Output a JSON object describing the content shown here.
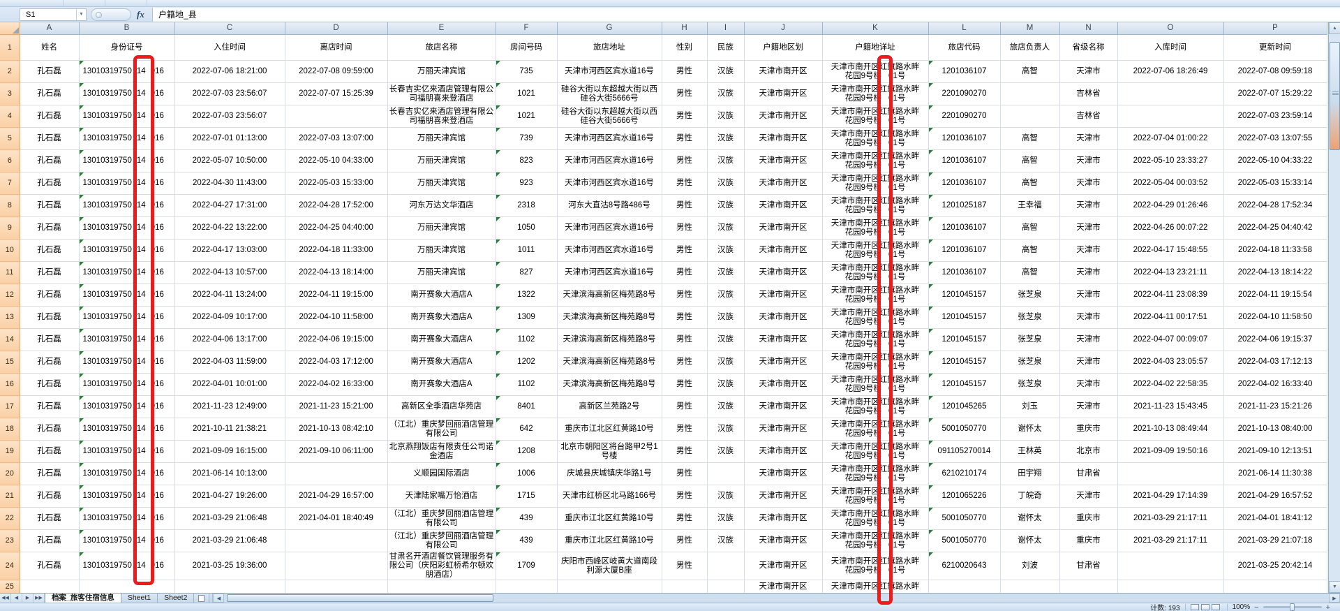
{
  "formula_bar": {
    "name_box": "S1",
    "fx_label": "fx",
    "formula": "户籍地_县"
  },
  "person": {
    "name": "孔石磊",
    "id_parts": [
      "13010319750",
      "14",
      "016"
    ]
  },
  "resident_addr": {
    "l1a": "天津市南开区",
    "l1hidden": "红",
    "l1b": "旗路水畔",
    "l2a": "花园9号楼",
    "l2b": "01号"
  },
  "columns": [
    {
      "letter": "A",
      "label": "姓名"
    },
    {
      "letter": "B",
      "label": "身份证号"
    },
    {
      "letter": "C",
      "label": "入住时间"
    },
    {
      "letter": "D",
      "label": "离店时间"
    },
    {
      "letter": "E",
      "label": "旅店名称"
    },
    {
      "letter": "F",
      "label": "房间号码"
    },
    {
      "letter": "G",
      "label": "旅店地址"
    },
    {
      "letter": "H",
      "label": "性别"
    },
    {
      "letter": "I",
      "label": "民族"
    },
    {
      "letter": "J",
      "label": "户籍地区划"
    },
    {
      "letter": "K",
      "label": "户籍地详址"
    },
    {
      "letter": "L",
      "label": "旅店代码"
    },
    {
      "letter": "M",
      "label": "旅店负责人"
    },
    {
      "letter": "N",
      "label": "省级名称"
    },
    {
      "letter": "O",
      "label": "入库时间"
    },
    {
      "letter": "P",
      "label": "更新时间"
    }
  ],
  "rows": [
    {
      "n": 2,
      "checkin": "2022-07-06 18:21:00",
      "checkout": "2022-07-08 09:59:00",
      "hotel": "万丽天津宾馆",
      "room": "735",
      "hotel_addr": "天津市河西区宾水道16号",
      "gender": "男性",
      "ethnicity": "汉族",
      "region": "天津市南开区",
      "hotel_code": "1201036107",
      "manager": "高智",
      "province": "天津市",
      "stored": "2022-07-06 18:26:49",
      "updated": "2022-07-08 09:59:18"
    },
    {
      "n": 3,
      "checkin": "2022-07-03 23:56:07",
      "checkout": "2022-07-07 15:25:39",
      "hotel": "长春吉实亿来酒店管理有限公司福朋喜来登酒店",
      "room": "1021",
      "hotel_addr": "硅谷大街以东超越大街以西硅谷大街5666号",
      "gender": "男性",
      "ethnicity": "汉族",
      "region": "天津市南开区",
      "hotel_code": "2201090270",
      "manager": "",
      "province": "吉林省",
      "stored": "",
      "updated": "2022-07-07 15:29:22"
    },
    {
      "n": 4,
      "checkin": "2022-07-03 23:56:07",
      "checkout": "",
      "hotel": "长春吉实亿来酒店管理有限公司福朋喜来登酒店",
      "room": "1021",
      "hotel_addr": "硅谷大街以东超越大街以西硅谷大街5666号",
      "gender": "男性",
      "ethnicity": "汉族",
      "region": "天津市南开区",
      "hotel_code": "2201090270",
      "manager": "",
      "province": "吉林省",
      "stored": "",
      "updated": "2022-07-03 23:59:14"
    },
    {
      "n": 5,
      "checkin": "2022-07-01 01:13:00",
      "checkout": "2022-07-03 13:07:00",
      "hotel": "万丽天津宾馆",
      "room": "739",
      "hotel_addr": "天津市河西区宾水道16号",
      "gender": "男性",
      "ethnicity": "汉族",
      "region": "天津市南开区",
      "hotel_code": "1201036107",
      "manager": "高智",
      "province": "天津市",
      "stored": "2022-07-04 01:00:22",
      "updated": "2022-07-03 13:07:55"
    },
    {
      "n": 6,
      "checkin": "2022-05-07 10:50:00",
      "checkout": "2022-05-10 04:33:00",
      "hotel": "万丽天津宾馆",
      "room": "823",
      "hotel_addr": "天津市河西区宾水道16号",
      "gender": "男性",
      "ethnicity": "汉族",
      "region": "天津市南开区",
      "hotel_code": "1201036107",
      "manager": "高智",
      "province": "天津市",
      "stored": "2022-05-10 23:33:27",
      "updated": "2022-05-10 04:33:22"
    },
    {
      "n": 7,
      "checkin": "2022-04-30 11:43:00",
      "checkout": "2022-05-03 15:33:00",
      "hotel": "万丽天津宾馆",
      "room": "923",
      "hotel_addr": "天津市河西区宾水道16号",
      "gender": "男性",
      "ethnicity": "汉族",
      "region": "天津市南开区",
      "hotel_code": "1201036107",
      "manager": "高智",
      "province": "天津市",
      "stored": "2022-05-04 00:03:52",
      "updated": "2022-05-03 15:33:14"
    },
    {
      "n": 8,
      "checkin": "2022-04-27 17:31:00",
      "checkout": "2022-04-28 17:52:00",
      "hotel": "河东万达文华酒店",
      "room": "2318",
      "hotel_addr": "河东大直沽8号路486号",
      "gender": "男性",
      "ethnicity": "汉族",
      "region": "天津市南开区",
      "hotel_code": "1201025187",
      "manager": "王幸福",
      "province": "天津市",
      "stored": "2022-04-29 01:26:46",
      "updated": "2022-04-28 17:52:34"
    },
    {
      "n": 9,
      "checkin": "2022-04-22 13:22:00",
      "checkout": "2022-04-25 04:40:00",
      "hotel": "万丽天津宾馆",
      "room": "1050",
      "hotel_addr": "天津市河西区宾水道16号",
      "gender": "男性",
      "ethnicity": "汉族",
      "region": "天津市南开区",
      "hotel_code": "1201036107",
      "manager": "高智",
      "province": "天津市",
      "stored": "2022-04-26 00:07:22",
      "updated": "2022-04-25 04:40:42"
    },
    {
      "n": 10,
      "checkin": "2022-04-17 13:03:00",
      "checkout": "2022-04-18 11:33:00",
      "hotel": "万丽天津宾馆",
      "room": "1011",
      "hotel_addr": "天津市河西区宾水道16号",
      "gender": "男性",
      "ethnicity": "汉族",
      "region": "天津市南开区",
      "hotel_code": "1201036107",
      "manager": "高智",
      "province": "天津市",
      "stored": "2022-04-17 15:48:55",
      "updated": "2022-04-18 11:33:58"
    },
    {
      "n": 11,
      "checkin": "2022-04-13 10:57:00",
      "checkout": "2022-04-13 18:14:00",
      "hotel": "万丽天津宾馆",
      "room": "827",
      "hotel_addr": "天津市河西区宾水道16号",
      "gender": "男性",
      "ethnicity": "汉族",
      "region": "天津市南开区",
      "hotel_code": "1201036107",
      "manager": "高智",
      "province": "天津市",
      "stored": "2022-04-13 23:21:11",
      "updated": "2022-04-13 18:14:22"
    },
    {
      "n": 12,
      "checkin": "2022-04-11 13:24:00",
      "checkout": "2022-04-11 19:15:00",
      "hotel": "南开赛象大酒店A",
      "room": "1322",
      "hotel_addr": "天津滨海高新区梅苑路8号",
      "gender": "男性",
      "ethnicity": "汉族",
      "region": "天津市南开区",
      "hotel_code": "1201045157",
      "manager": "张芝泉",
      "province": "天津市",
      "stored": "2022-04-11 23:08:39",
      "updated": "2022-04-11 19:15:54"
    },
    {
      "n": 13,
      "checkin": "2022-04-09 10:17:00",
      "checkout": "2022-04-10 11:58:00",
      "hotel": "南开赛象大酒店A",
      "room": "1309",
      "hotel_addr": "天津滨海高新区梅苑路8号",
      "gender": "男性",
      "ethnicity": "汉族",
      "region": "天津市南开区",
      "hotel_code": "1201045157",
      "manager": "张芝泉",
      "province": "天津市",
      "stored": "2022-04-11 00:17:51",
      "updated": "2022-04-10 11:58:50"
    },
    {
      "n": 14,
      "checkin": "2022-04-06 13:17:00",
      "checkout": "2022-04-06 19:15:00",
      "hotel": "南开赛象大酒店A",
      "room": "1102",
      "hotel_addr": "天津滨海高新区梅苑路8号",
      "gender": "男性",
      "ethnicity": "汉族",
      "region": "天津市南开区",
      "hotel_code": "1201045157",
      "manager": "张芝泉",
      "province": "天津市",
      "stored": "2022-04-07 00:09:07",
      "updated": "2022-04-06 19:15:37"
    },
    {
      "n": 15,
      "checkin": "2022-04-03 11:59:00",
      "checkout": "2022-04-03 17:12:00",
      "hotel": "南开赛象大酒店A",
      "room": "1202",
      "hotel_addr": "天津滨海高新区梅苑路8号",
      "gender": "男性",
      "ethnicity": "汉族",
      "region": "天津市南开区",
      "hotel_code": "1201045157",
      "manager": "张芝泉",
      "province": "天津市",
      "stored": "2022-04-03 23:05:57",
      "updated": "2022-04-03 17:12:13"
    },
    {
      "n": 16,
      "checkin": "2022-04-01 10:01:00",
      "checkout": "2022-04-02 16:33:00",
      "hotel": "南开赛象大酒店A",
      "room": "1102",
      "hotel_addr": "天津滨海高新区梅苑路8号",
      "gender": "男性",
      "ethnicity": "汉族",
      "region": "天津市南开区",
      "hotel_code": "1201045157",
      "manager": "张芝泉",
      "province": "天津市",
      "stored": "2022-04-02 22:58:35",
      "updated": "2022-04-02 16:33:40"
    },
    {
      "n": 17,
      "checkin": "2021-11-23 12:49:00",
      "checkout": "2021-11-23 15:21:00",
      "hotel": "高新区全季酒店华苑店",
      "room": "8401",
      "hotel_addr": "高新区兰苑路2号",
      "gender": "男性",
      "ethnicity": "汉族",
      "region": "天津市南开区",
      "hotel_code": "1201045265",
      "manager": "刘玉",
      "province": "天津市",
      "stored": "2021-11-23 15:43:45",
      "updated": "2021-11-23 15:21:26"
    },
    {
      "n": 18,
      "checkin": "2021-10-11 21:38:21",
      "checkout": "2021-10-13 08:42:10",
      "hotel": "（江北）重庆梦回丽酒店管理有限公司",
      "room": "642",
      "hotel_addr": "重庆市江北区红黄路10号",
      "gender": "男性",
      "ethnicity": "汉族",
      "region": "天津市南开区",
      "hotel_code": "5001050770",
      "manager": "谢怀太",
      "province": "重庆市",
      "stored": "2021-10-13 08:49:44",
      "updated": "2021-10-13 08:40:00"
    },
    {
      "n": 19,
      "checkin": "2021-09-09 16:15:00",
      "checkout": "2021-09-10 06:11:00",
      "hotel": "北京燕翔饭店有限责任公司诺金酒店",
      "room": "1208",
      "hotel_addr": "北京市朝阳区将台路甲2号1号楼",
      "gender": "男性",
      "ethnicity": "汉族",
      "region": "天津市南开区",
      "hotel_code": "091105270014",
      "manager": "王林英",
      "province": "北京市",
      "stored": "2021-09-09 19:50:16",
      "updated": "2021-09-10 12:13:51"
    },
    {
      "n": 20,
      "checkin": "2021-06-14 10:13:00",
      "checkout": "",
      "hotel": "义顺园国际酒店",
      "room": "1006",
      "hotel_addr": "庆城县庆城镇庆华路1号",
      "gender": "男性",
      "ethnicity": "",
      "region": "天津市南开区",
      "hotel_code": "6210210174",
      "manager": "田宇翔",
      "province": "甘肃省",
      "stored": "",
      "updated": "2021-06-14 11:30:38"
    },
    {
      "n": 21,
      "checkin": "2021-04-27 19:26:00",
      "checkout": "2021-04-29 16:57:00",
      "hotel": "天津陆家嘴万怡酒店",
      "room": "1715",
      "hotel_addr": "天津市红桥区北马路166号",
      "gender": "男性",
      "ethnicity": "汉族",
      "region": "天津市南开区",
      "hotel_code": "1201065226",
      "manager": "丁皖奇",
      "province": "天津市",
      "stored": "2021-04-29 17:14:39",
      "updated": "2021-04-29 16:57:52"
    },
    {
      "n": 22,
      "checkin": "2021-03-29 21:06:48",
      "checkout": "2021-04-01 18:40:49",
      "hotel": "（江北）重庆梦回丽酒店管理有限公司",
      "room": "439",
      "hotel_addr": "重庆市江北区红黄路10号",
      "gender": "男性",
      "ethnicity": "汉族",
      "region": "天津市南开区",
      "hotel_code": "5001050770",
      "manager": "谢怀太",
      "province": "重庆市",
      "stored": "2021-03-29 21:17:11",
      "updated": "2021-04-01 18:41:12"
    },
    {
      "n": 23,
      "checkin": "2021-03-29 21:06:48",
      "checkout": "",
      "hotel": "（江北）重庆梦回丽酒店管理有限公司",
      "room": "439",
      "hotel_addr": "重庆市江北区红黄路10号",
      "gender": "男性",
      "ethnicity": "汉族",
      "region": "天津市南开区",
      "hotel_code": "5001050770",
      "manager": "谢怀太",
      "province": "重庆市",
      "stored": "2021-03-29 21:17:11",
      "updated": "2021-03-29 21:07:18"
    },
    {
      "n": 24,
      "checkin": "2021-03-25 19:36:00",
      "checkout": "",
      "hotel": "甘肃名开酒店餐饮管理服务有限公司（庆阳彩虹桥希尔顿欢朋酒店）",
      "room": "1709",
      "hotel_addr": "庆阳市西峰区岐黄大道南段利源大厦B座",
      "gender": "男性",
      "ethnicity": "",
      "region": "天津市南开区",
      "hotel_code": "6210020643",
      "manager": "刘波",
      "province": "甘肃省",
      "stored": "",
      "updated": "2021-03-25 20:42:14"
    }
  ],
  "partial_row": {
    "n": "25",
    "region": "天津市南开区",
    "k_l1a": "天津市南开区",
    "k_l1b": "旗路水畔"
  },
  "sheet_tabs": {
    "tabs": [
      "档案_旅客住宿信息",
      "Sheet1",
      "Sheet2"
    ],
    "active_index": 0
  },
  "status_bar": {
    "count_label": "计数: 193",
    "zoom_level": "100%"
  },
  "colors": {
    "red_annotation": "#ee1b1b",
    "row_header": "#fbd0a6",
    "column_header": "#dbe6f2",
    "grid_line": "#d5dde8",
    "green_indicator": "#2e7d32"
  }
}
